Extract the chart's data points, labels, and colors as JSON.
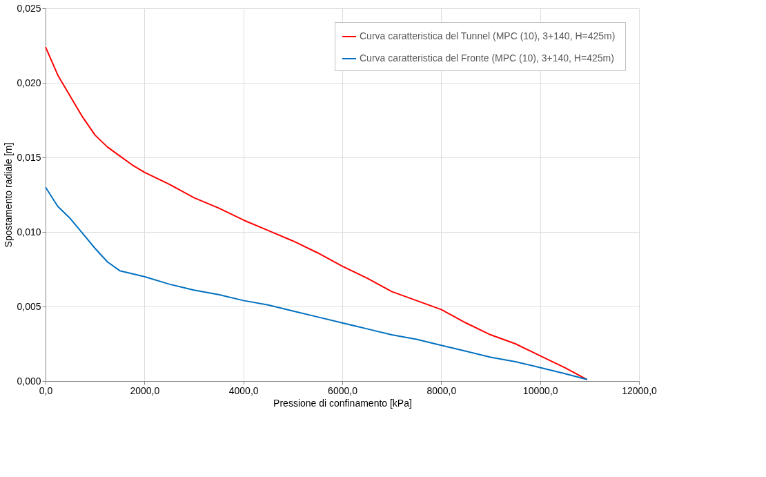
{
  "chart_data": {
    "type": "line",
    "xlabel": "Pressione di confinamento [kPa]",
    "ylabel": "Spostamento radiale [m]",
    "x": [
      0,
      250,
      500,
      750,
      1000,
      1250,
      1500,
      1750,
      2000,
      2500,
      3000,
      3500,
      4000,
      4500,
      5000,
      5500,
      6000,
      6500,
      7000,
      7500,
      8000,
      8500,
      9000,
      9500,
      10000,
      10500,
      10950
    ],
    "series": [
      {
        "name": "Curva caratteristica del Tunnel  (MPC (10), 3+140, H=425m)",
        "color": "#ff0000",
        "values": [
          0.0224,
          0.0205,
          0.0191,
          0.0177,
          0.0165,
          0.0157,
          0.0151,
          0.0145,
          0.014,
          0.0132,
          0.0123,
          0.0116,
          0.0108,
          0.0101,
          0.0094,
          0.0086,
          0.0077,
          0.0069,
          0.006,
          0.0054,
          0.0048,
          0.0039,
          0.0031,
          0.0025,
          0.0017,
          0.0009,
          0.0001
        ]
      },
      {
        "name": "Curva caratteristica del Fronte  (MPC (10), 3+140, H=425m)",
        "color": "#0070c0",
        "values": [
          0.013,
          0.0117,
          0.0109,
          0.0099,
          0.0089,
          0.008,
          0.0074,
          0.0072,
          0.007,
          0.0065,
          0.0061,
          0.0058,
          0.0054,
          0.0051,
          0.0047,
          0.0043,
          0.0039,
          0.0035,
          0.0031,
          0.0028,
          0.0024,
          0.002,
          0.0016,
          0.0013,
          0.0009,
          0.0005,
          0.0001
        ]
      }
    ],
    "xlim": [
      0,
      12000
    ],
    "ylim": [
      0,
      0.025
    ],
    "xticks": [
      {
        "value": 0,
        "label": "0,0"
      },
      {
        "value": 2000,
        "label": "2000,0"
      },
      {
        "value": 4000,
        "label": "4000,0"
      },
      {
        "value": 6000,
        "label": "6000,0"
      },
      {
        "value": 8000,
        "label": "8000,0"
      },
      {
        "value": 10000,
        "label": "10000,0"
      },
      {
        "value": 12000,
        "label": "12000,0"
      }
    ],
    "yticks": [
      {
        "value": 0,
        "label": "0,000"
      },
      {
        "value": 0.005,
        "label": "0,005"
      },
      {
        "value": 0.01,
        "label": "0,010"
      },
      {
        "value": 0.015,
        "label": "0,015"
      },
      {
        "value": 0.02,
        "label": "0,020"
      },
      {
        "value": 0.025,
        "label": "0,025"
      }
    ],
    "grid": true,
    "legend": "top right",
    "marker": "none",
    "line_style": "solid"
  }
}
